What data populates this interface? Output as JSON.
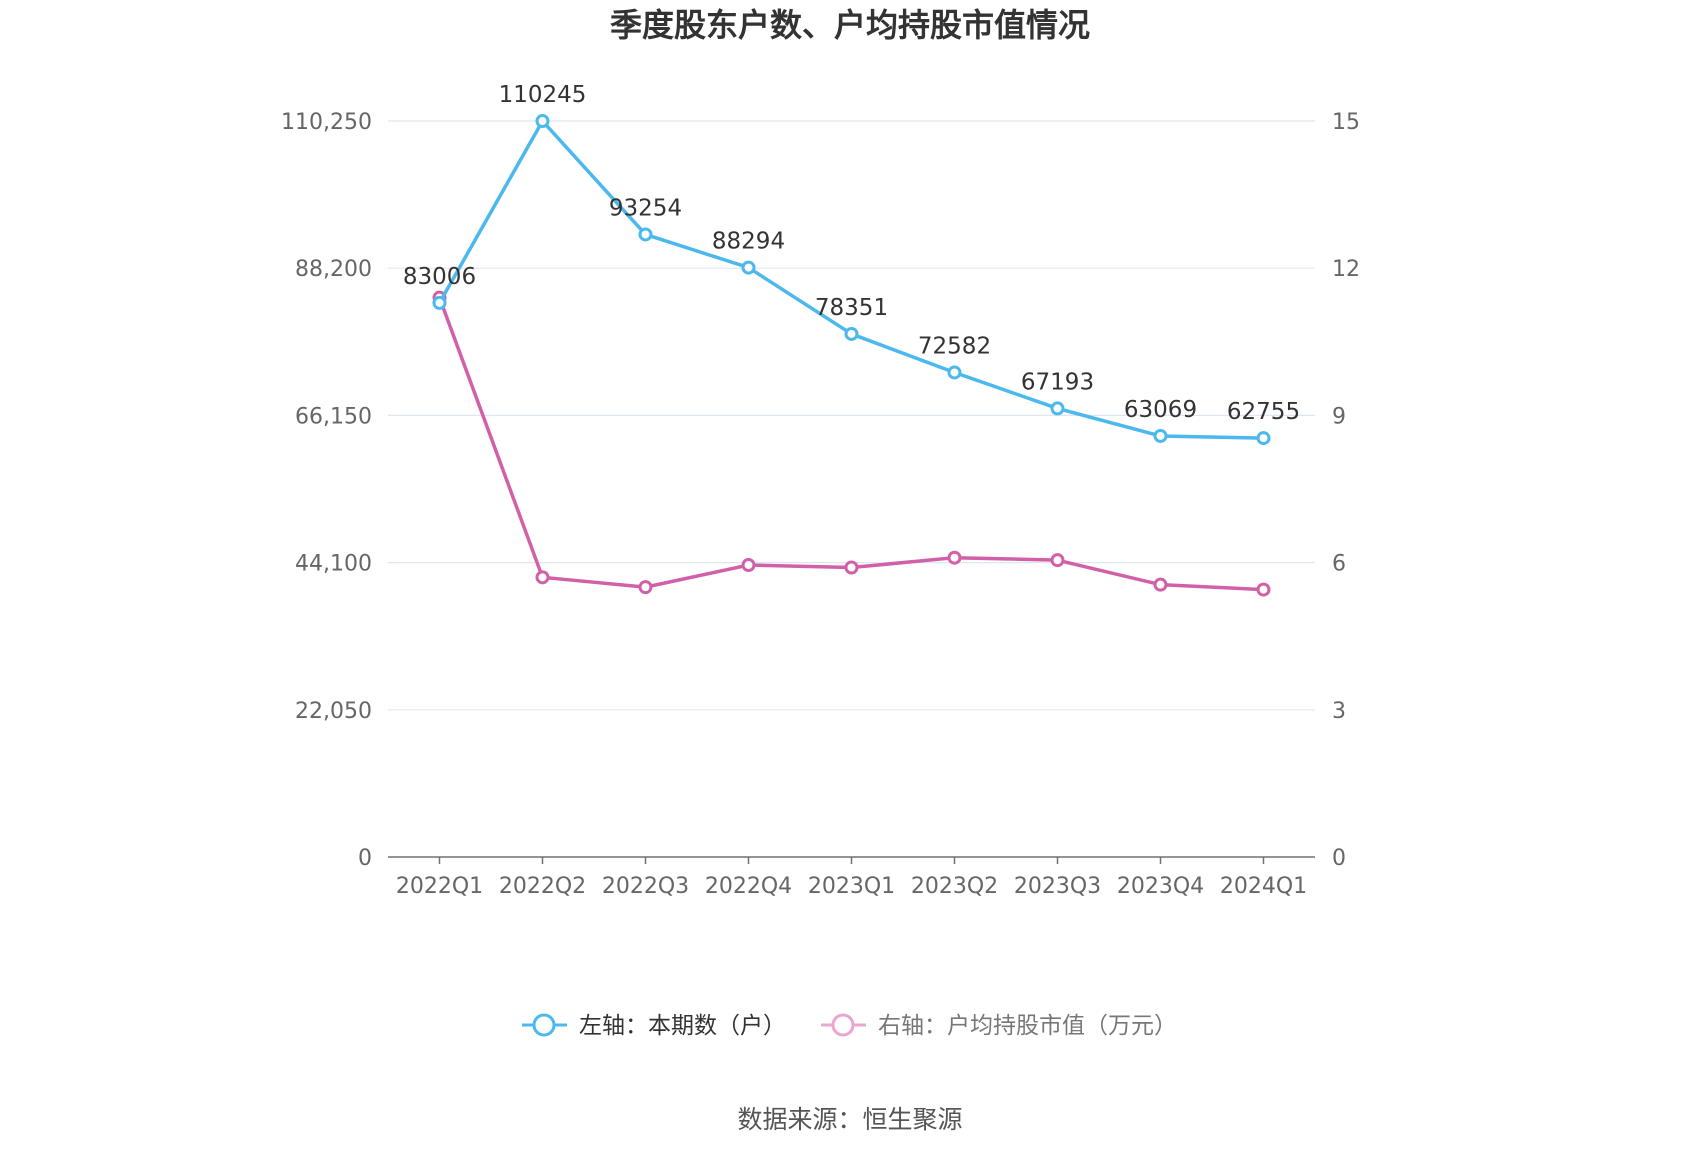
{
  "chart_data": {
    "type": "line",
    "title": "季度股东户数、户均持股市值情况",
    "categories": [
      "2022Q1",
      "2022Q2",
      "2022Q3",
      "2022Q4",
      "2023Q1",
      "2023Q2",
      "2023Q3",
      "2023Q4",
      "2024Q1"
    ],
    "series": [
      {
        "name": "左轴：本期数（户）",
        "axis": "left",
        "color": "#4BB8EE",
        "values": [
          83006,
          110245,
          93254,
          88294,
          78351,
          72582,
          67193,
          63069,
          62755
        ],
        "data_labels": [
          "83006",
          "110245",
          "93254",
          "88294",
          "78351",
          "72582",
          "67193",
          "63069",
          "62755"
        ]
      },
      {
        "name": "右轴：户均持股市值（万元）",
        "axis": "right",
        "color": "#D160A8",
        "values": [
          11.4,
          5.7,
          5.5,
          5.95,
          5.9,
          6.1,
          6.05,
          5.55,
          5.45
        ]
      }
    ],
    "left_axis": {
      "ticks": [
        "0",
        "22,050",
        "44,100",
        "66,150",
        "88,200",
        "110,250"
      ],
      "range": [
        0,
        110250
      ]
    },
    "right_axis": {
      "ticks": [
        "0",
        "3",
        "6",
        "9",
        "12",
        "15"
      ],
      "range": [
        0,
        15
      ]
    },
    "grid": true,
    "legend_position": "bottom"
  },
  "legend": {
    "left_label": "左轴：本期数（户）",
    "right_label": "右轴：户均持股市值（万元）",
    "left_color": "#4BB8EE",
    "right_color": "#E9A6CF"
  },
  "source": "数据来源：恒生聚源"
}
